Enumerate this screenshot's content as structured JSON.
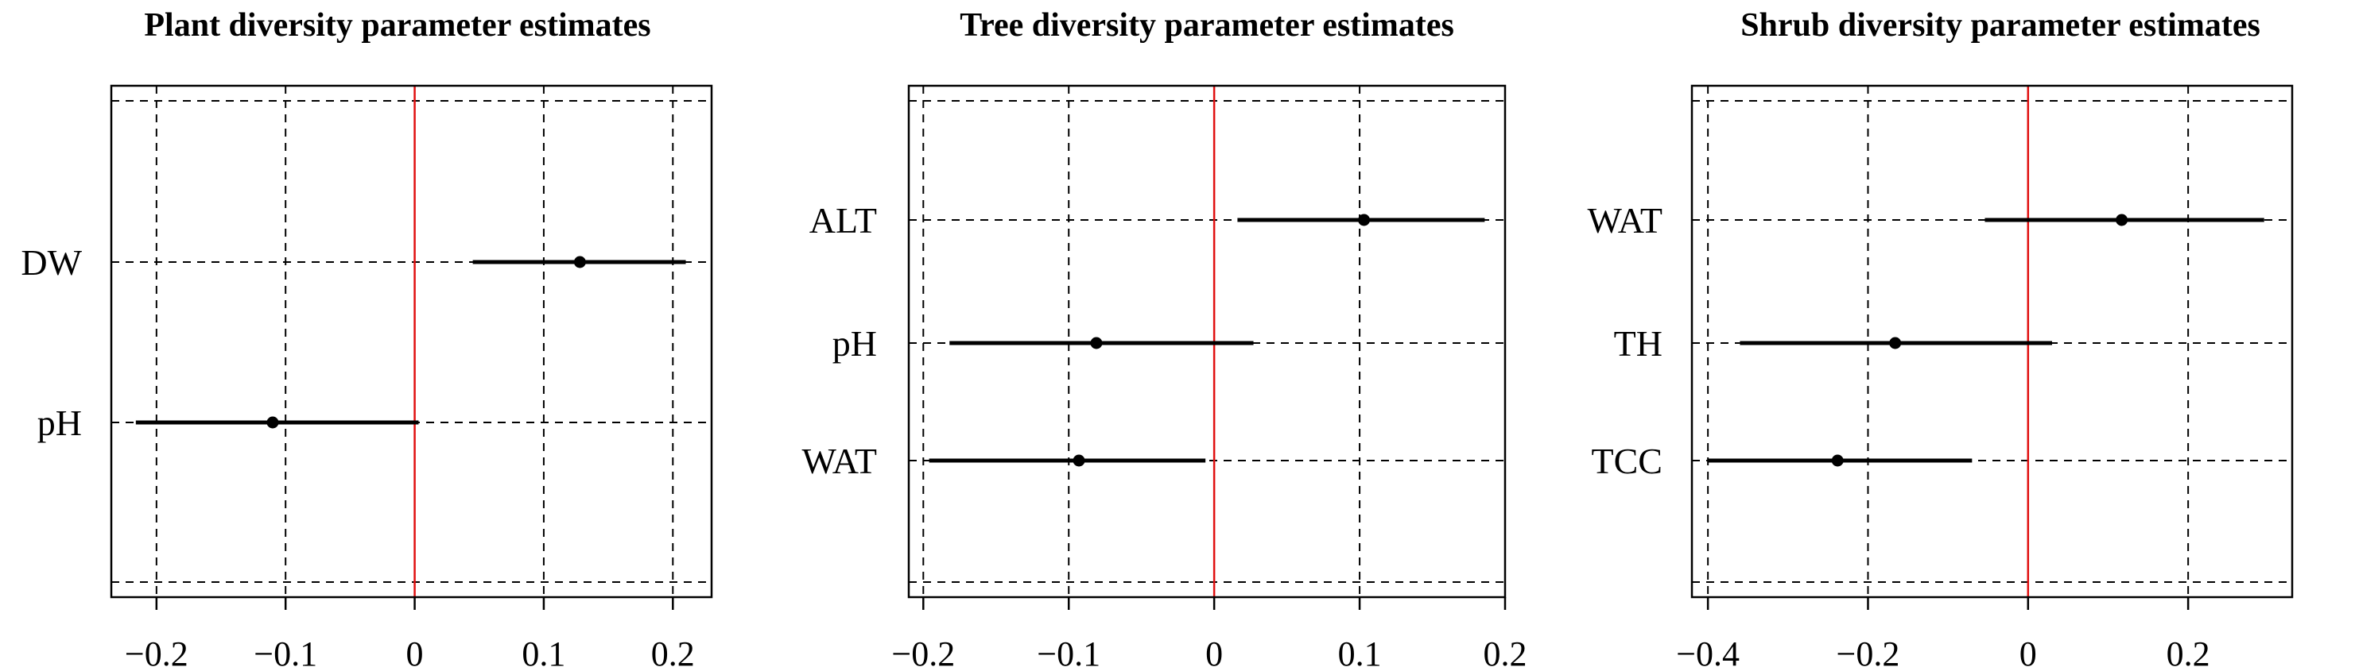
{
  "chart_data": [
    {
      "type": "forest",
      "title": "Plant diversity parameter estimates",
      "xlim": [
        -0.235,
        0.23
      ],
      "xticks": [
        -0.2,
        -0.1,
        0,
        0.1,
        0.2
      ],
      "xtick_labels": [
        "−0.2",
        "−0.1",
        "0",
        "0.1",
        "0.2"
      ],
      "rows": [
        "",
        "DW",
        "pH",
        ""
      ],
      "estimates": [
        {
          "label": "DW",
          "estimate": 0.128,
          "lower": 0.045,
          "upper": 0.21
        },
        {
          "label": "pH",
          "estimate": -0.11,
          "lower": -0.216,
          "upper": 0.003
        }
      ],
      "grid": true,
      "reference_line": 0,
      "reference_color": "#e01010"
    },
    {
      "type": "forest",
      "title": "Tree diversity parameter estimates",
      "xlim": [
        -0.21,
        0.2
      ],
      "xticks": [
        -0.2,
        -0.1,
        0,
        0.1,
        0.2
      ],
      "xtick_labels": [
        "−0.2",
        "−0.1",
        "0",
        "0.1",
        "0.2"
      ],
      "rows": [
        "",
        "ALT",
        "pH",
        "WAT",
        ""
      ],
      "estimates": [
        {
          "label": "ALT",
          "estimate": 0.103,
          "lower": 0.016,
          "upper": 0.186
        },
        {
          "label": "pH",
          "estimate": -0.081,
          "lower": -0.182,
          "upper": 0.027
        },
        {
          "label": "WAT",
          "estimate": -0.093,
          "lower": -0.196,
          "upper": -0.006
        }
      ],
      "grid": true,
      "reference_line": 0,
      "reference_color": "#e01010"
    },
    {
      "type": "forest",
      "title": "Shrub diversity parameter estimates",
      "xlim": [
        -0.42,
        0.33
      ],
      "xticks": [
        -0.4,
        -0.2,
        0,
        0.2
      ],
      "xtick_labels": [
        "−0.4",
        "−0.2",
        "0",
        "0.2"
      ],
      "rows": [
        "",
        "WAT",
        "TH",
        "TCC",
        ""
      ],
      "estimates": [
        {
          "label": "WAT",
          "estimate": 0.117,
          "lower": -0.054,
          "upper": 0.295
        },
        {
          "label": "TH",
          "estimate": -0.166,
          "lower": -0.36,
          "upper": 0.03
        },
        {
          "label": "TCC",
          "estimate": -0.238,
          "lower": -0.4,
          "upper": -0.07
        }
      ],
      "grid": true,
      "reference_line": 0,
      "reference_color": "#e01010"
    }
  ]
}
